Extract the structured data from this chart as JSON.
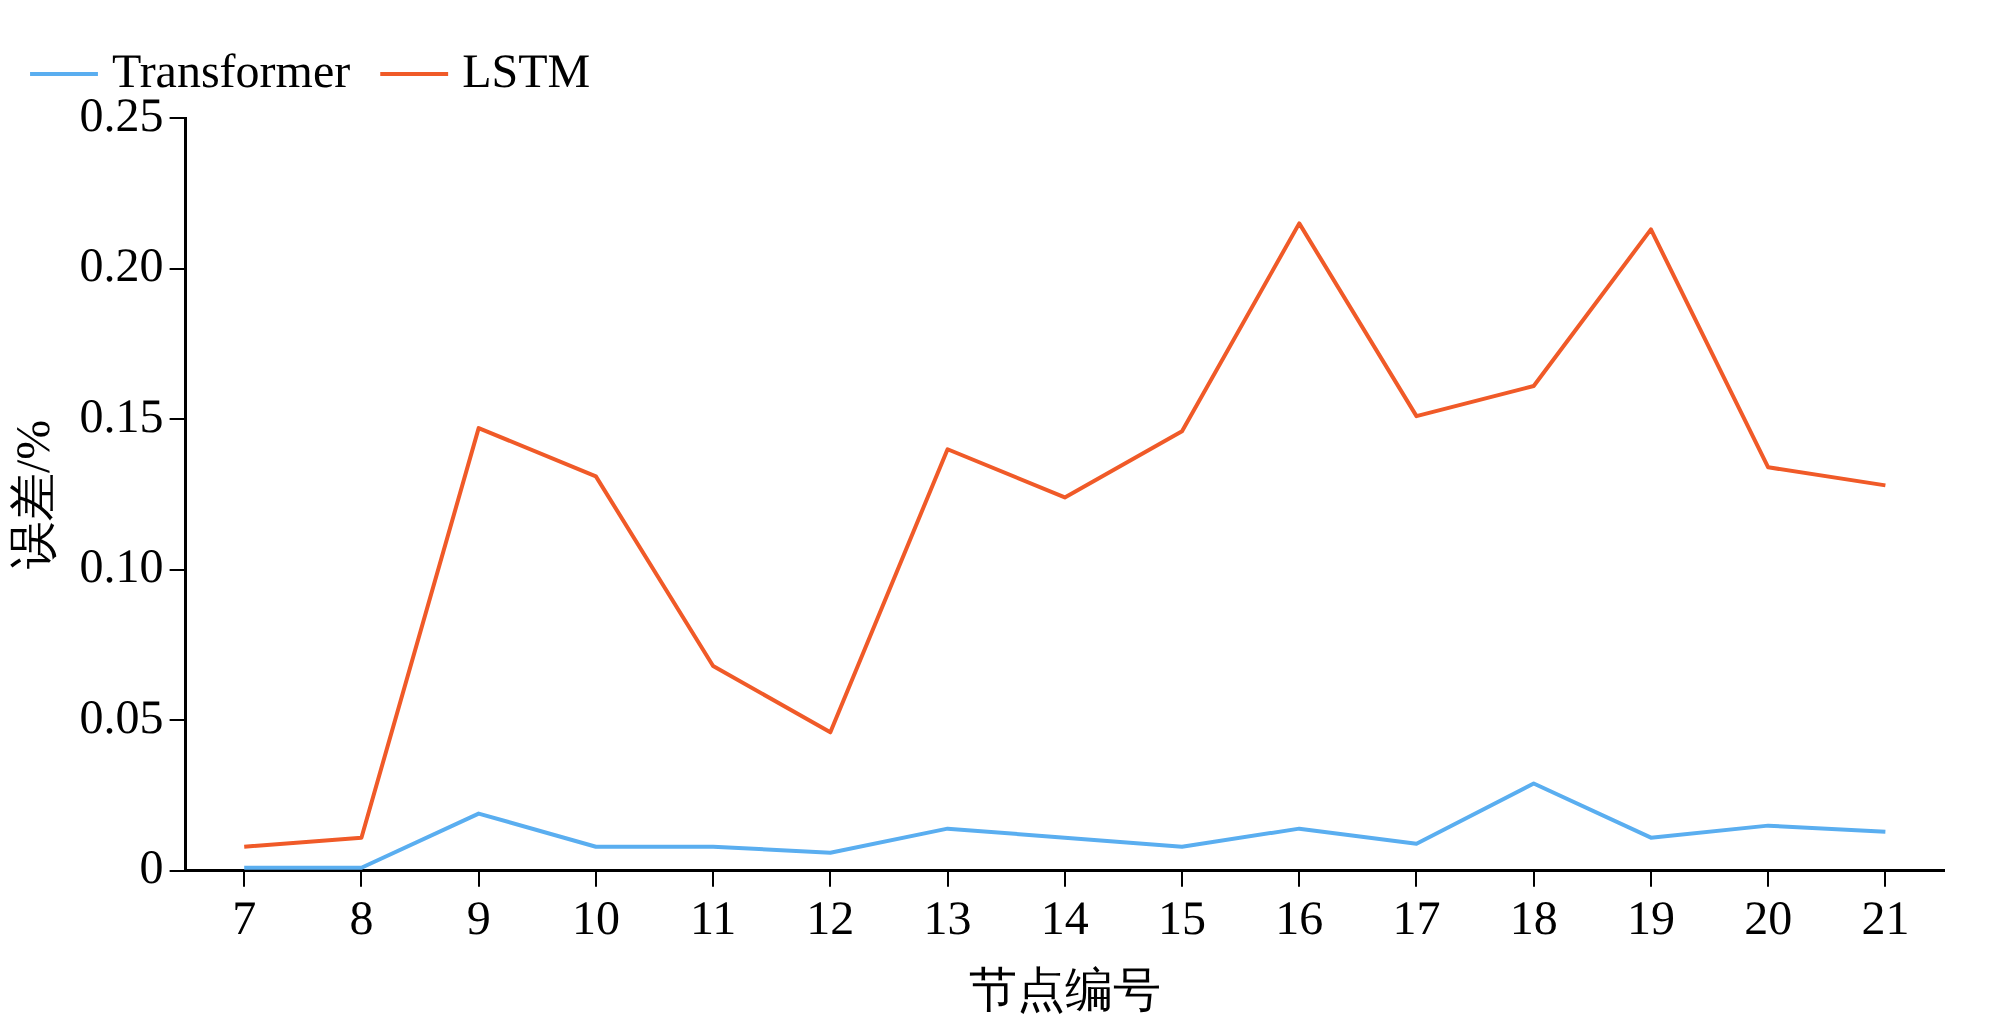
{
  "chart_data": {
    "type": "line",
    "xlabel": "节点编号",
    "ylabel": "误差/%",
    "categories": [
      "7",
      "8",
      "9",
      "10",
      "11",
      "12",
      "13",
      "14",
      "15",
      "16",
      "17",
      "18",
      "19",
      "20",
      "21"
    ],
    "series": [
      {
        "name": "Transformer",
        "color": "#5aaef0",
        "values": [
          0.001,
          0.001,
          0.019,
          0.008,
          0.008,
          0.006,
          0.014,
          0.011,
          0.008,
          0.014,
          0.009,
          0.029,
          0.011,
          0.015,
          0.013
        ]
      },
      {
        "name": "LSTM",
        "color": "#f05a28",
        "values": [
          0.008,
          0.011,
          0.147,
          0.131,
          0.068,
          0.046,
          0.14,
          0.124,
          0.146,
          0.215,
          0.151,
          0.161,
          0.213,
          0.134,
          0.128
        ]
      }
    ],
    "ylim": [
      0,
      0.25
    ],
    "yticks": [
      0,
      0.05,
      {
        "value": 0.1,
        "label": "0.10"
      },
      0.15,
      {
        "value": 0.2,
        "label": "0.20"
      },
      0.25
    ],
    "grid": false,
    "legend": "top left",
    "marker": "none",
    "line_style": "solid"
  }
}
